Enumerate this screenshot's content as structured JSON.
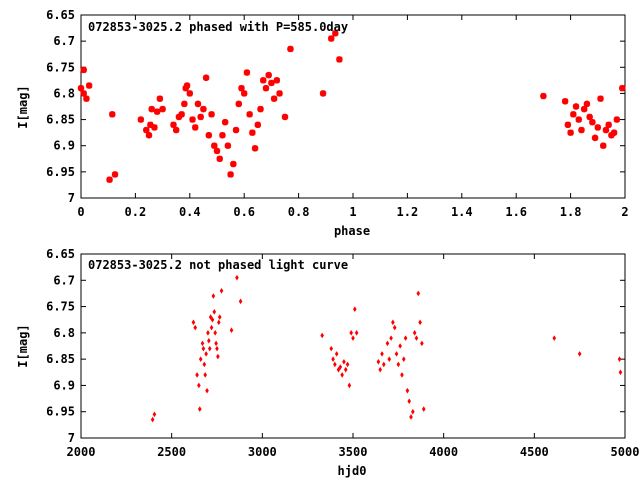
{
  "chart_data": [
    {
      "type": "scatter",
      "title": "072853-3025.2 phased with P=585.0day",
      "xlabel": "phase",
      "ylabel": "I[mag]",
      "xlim": [
        0,
        2
      ],
      "ylim": [
        7,
        6.65
      ],
      "y_inverted": true,
      "xticks": [
        "0",
        "0.2",
        "0.4",
        "0.6",
        "0.8",
        "1",
        "1.2",
        "1.4",
        "1.6",
        "1.8",
        "2"
      ],
      "yticks": [
        "6.65",
        "6.7",
        "6.75",
        "6.8",
        "6.85",
        "6.9",
        "6.95",
        "7"
      ],
      "marker_color": "#ff0000",
      "series": [
        {
          "x": [
            0.0,
            0.01,
            0.02,
            0.03,
            0.01,
            0.105,
            0.115,
            0.125,
            0.22,
            0.24,
            0.25,
            0.255,
            0.26,
            0.27,
            0.28,
            0.29,
            0.3,
            0.34,
            0.35,
            0.36,
            0.37,
            0.38,
            0.385,
            0.39,
            0.4,
            0.41,
            0.42,
            0.43,
            0.44,
            0.45,
            0.46,
            0.47,
            0.48,
            0.49,
            0.5,
            0.51,
            0.52,
            0.53,
            0.54,
            0.55,
            0.56,
            0.57,
            0.58,
            0.59,
            0.6,
            0.61,
            0.62,
            0.63,
            0.64,
            0.65,
            0.66,
            0.67,
            0.68,
            0.69,
            0.7,
            0.71,
            0.72,
            0.73,
            0.75,
            0.77,
            0.89,
            0.92,
            0.935,
            0.95,
            1.7,
            1.78,
            1.79,
            1.8,
            1.81,
            1.82,
            1.83,
            1.84,
            1.85,
            1.86,
            1.87,
            1.88,
            1.89,
            1.9,
            1.91,
            1.92,
            1.93,
            1.94,
            1.95,
            1.96,
            1.97,
            1.99
          ],
          "y": [
            6.79,
            6.755,
            6.81,
            6.785,
            6.8,
            6.965,
            6.84,
            6.955,
            6.85,
            6.87,
            6.88,
            6.86,
            6.83,
            6.865,
            6.835,
            6.81,
            6.83,
            6.86,
            6.87,
            6.845,
            6.84,
            6.82,
            6.79,
            6.785,
            6.8,
            6.85,
            6.865,
            6.82,
            6.845,
            6.83,
            6.77,
            6.88,
            6.84,
            6.9,
            6.91,
            6.925,
            6.88,
            6.855,
            6.9,
            6.955,
            6.935,
            6.87,
            6.82,
            6.79,
            6.8,
            6.76,
            6.84,
            6.875,
            6.905,
            6.86,
            6.83,
            6.775,
            6.79,
            6.765,
            6.78,
            6.81,
            6.775,
            6.8,
            6.845,
            6.715,
            6.8,
            6.695,
            6.685,
            6.735,
            6.805,
            6.815,
            6.86,
            6.875,
            6.84,
            6.825,
            6.85,
            6.87,
            6.83,
            6.82,
            6.845,
            6.855,
            6.885,
            6.865,
            6.81,
            6.9,
            6.87,
            6.86,
            6.88,
            6.875,
            6.85,
            6.79
          ]
        }
      ]
    },
    {
      "type": "scatter",
      "title": "072853-3025.2 not phased light curve",
      "xlabel": "hjd0",
      "ylabel": "I[mag]",
      "xlim": [
        2000,
        5000
      ],
      "ylim": [
        7,
        6.65
      ],
      "y_inverted": true,
      "xticks": [
        "2000",
        "2500",
        "3000",
        "3500",
        "4000",
        "4500",
        "5000"
      ],
      "yticks": [
        "6.65",
        "6.7",
        "6.75",
        "6.8",
        "6.85",
        "6.9",
        "6.95",
        "7"
      ],
      "marker_color": "#ff0000",
      "series": [
        {
          "x": [
            2395,
            2405,
            2620,
            2630,
            2640,
            2650,
            2655,
            2660,
            2670,
            2675,
            2680,
            2685,
            2690,
            2695,
            2700,
            2705,
            2710,
            2715,
            2720,
            2725,
            2730,
            2735,
            2740,
            2745,
            2750,
            2755,
            2760,
            2765,
            2775,
            2830,
            2860,
            2880,
            3330,
            3380,
            3390,
            3400,
            3410,
            3420,
            3430,
            3440,
            3450,
            3460,
            3470,
            3480,
            3490,
            3500,
            3510,
            3520,
            3640,
            3650,
            3660,
            3670,
            3690,
            3700,
            3710,
            3720,
            3730,
            3740,
            3750,
            3760,
            3770,
            3780,
            3790,
            3800,
            3810,
            3820,
            3830,
            3840,
            3850,
            3860,
            3870,
            3880,
            3890,
            4610,
            4750,
            4970,
            4975
          ],
          "y": [
            6.965,
            6.955,
            6.78,
            6.79,
            6.88,
            6.9,
            6.945,
            6.85,
            6.82,
            6.83,
            6.86,
            6.88,
            6.84,
            6.91,
            6.8,
            6.815,
            6.83,
            6.77,
            6.79,
            6.775,
            6.73,
            6.76,
            6.8,
            6.82,
            6.83,
            6.845,
            6.78,
            6.77,
            6.72,
            6.795,
            6.695,
            6.74,
            6.805,
            6.83,
            6.85,
            6.86,
            6.84,
            6.87,
            6.865,
            6.88,
            6.855,
            6.87,
            6.86,
            6.9,
            6.8,
            6.81,
            6.755,
            6.8,
            6.855,
            6.87,
            6.84,
            6.86,
            6.82,
            6.85,
            6.81,
            6.78,
            6.79,
            6.84,
            6.86,
            6.825,
            6.88,
            6.85,
            6.81,
            6.91,
            6.93,
            6.96,
            6.95,
            6.8,
            6.81,
            6.725,
            6.78,
            6.82,
            6.945,
            6.81,
            6.84,
            6.85,
            6.875
          ]
        }
      ]
    }
  ]
}
